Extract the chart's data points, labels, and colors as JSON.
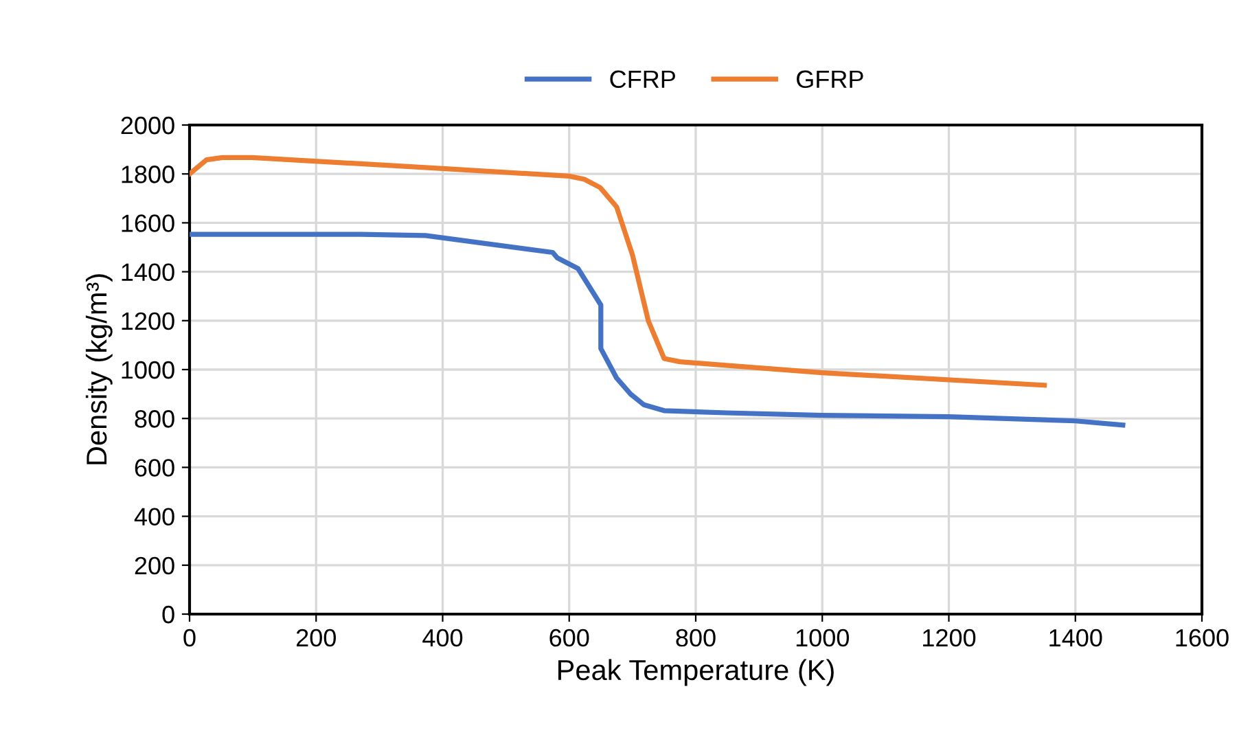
{
  "chart_data": {
    "type": "line",
    "xlabel": "Peak Temperature (K)",
    "ylabel": "Density (kg/m³)",
    "xlim": [
      0,
      1600
    ],
    "xticks": [
      0,
      200,
      400,
      600,
      800,
      1000,
      1200,
      1400,
      1600
    ],
    "ylim": [
      0,
      2000
    ],
    "yticks": [
      0,
      200,
      400,
      600,
      800,
      1000,
      1200,
      1400,
      1600,
      1800,
      2000
    ],
    "grid": true,
    "legend": "top",
    "marker": "none",
    "line_style": "solid",
    "series": [
      {
        "name": "CFRP",
        "color": "#4472c4",
        "x": [
          0,
          270,
          373,
          574,
          581,
          614,
          650,
          650,
          675,
          697,
          718,
          750,
          848,
          1000,
          1200,
          1400,
          1475
        ],
        "values": [
          1553,
          1553,
          1548,
          1479,
          1457,
          1413,
          1264,
          1086,
          965,
          900,
          856,
          832,
          823,
          813,
          807,
          790,
          773
        ]
      },
      {
        "name": "GFRP",
        "color": "#ed7d31",
        "x": [
          0,
          27,
          52,
          99,
          400,
          600,
          624,
          649,
          675,
          700,
          725,
          750,
          775,
          848,
          1000,
          1351
        ],
        "values": [
          1800,
          1858,
          1867,
          1867,
          1822,
          1791,
          1778,
          1744,
          1665,
          1469,
          1200,
          1045,
          1032,
          1017,
          987,
          936
        ]
      }
    ]
  }
}
